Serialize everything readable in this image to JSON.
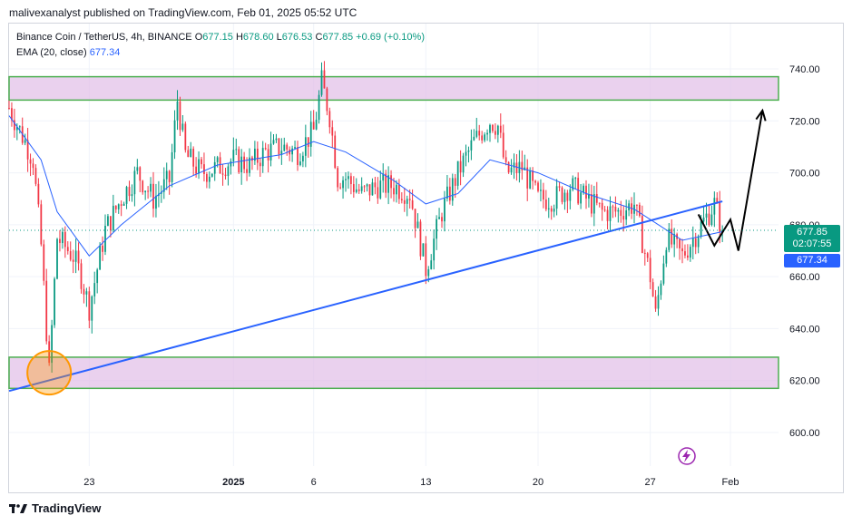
{
  "header": {
    "published_line": "malivexanalyst published on TradingView.com, Feb 01, 2025 05:52 UTC"
  },
  "legend": {
    "symbol": "Binance Coin / TetherUS, 4h, BINANCE",
    "open_label": "O",
    "open": "677.15",
    "high_label": "H",
    "high": "678.60",
    "low_label": "L",
    "low": "676.53",
    "close_label": "C",
    "close": "677.85",
    "change": "+0.69 (+0.10%)",
    "ema_label": "EMA (20, close)",
    "ema_value": "677.34"
  },
  "price_tags": {
    "last_price": "677.85",
    "countdown": "02:07:55",
    "ema": "677.34"
  },
  "footer": {
    "brand": "TradingView"
  },
  "colors": {
    "up": "#089981",
    "down": "#f23645",
    "ema": "#2962ff",
    "zone_fill": "#e1bee7",
    "zone_border": "#4caf50",
    "trendline": "#2962ff",
    "circle": "#ff9800"
  },
  "chart_data": {
    "type": "candlestick",
    "title": "Binance Coin / TetherUS, 4h, BINANCE",
    "y_range": [
      590,
      750
    ],
    "y_ticks": [
      600,
      620,
      640,
      660,
      680,
      700,
      720,
      740
    ],
    "y_tick_labels": [
      "600.00",
      "620.00",
      "640.00",
      "660.00",
      "680.00",
      "700.00",
      "720.00",
      "740.00"
    ],
    "x_ticks": [
      "23",
      "2025",
      "6",
      "13",
      "20",
      "27",
      "Feb"
    ],
    "x_range": [
      "2024-12-18",
      "2025-02-04"
    ],
    "x_tick_dates": [
      "2024-12-23",
      "2025-01-01",
      "2025-01-06",
      "2025-01-13",
      "2025-01-20",
      "2025-01-27",
      "2025-02-01"
    ],
    "close_path": [
      [
        "2024-12-18",
        725
      ],
      [
        "2024-12-19",
        712
      ],
      [
        "2024-12-19 12:00",
        705
      ],
      [
        "2024-12-20",
        672
      ],
      [
        "2024-12-20 12:00",
        623
      ],
      [
        "2024-12-21",
        675
      ],
      [
        "2024-12-22",
        668
      ],
      [
        "2024-12-22 12:00",
        660
      ],
      [
        "2024-12-23",
        648
      ],
      [
        "2024-12-24",
        678
      ],
      [
        "2024-12-25",
        690
      ],
      [
        "2024-12-26",
        700
      ],
      [
        "2024-12-27",
        690
      ],
      [
        "2024-12-28",
        697
      ],
      [
        "2024-12-28 12:00",
        728
      ],
      [
        "2024-12-29",
        707
      ],
      [
        "2024-12-30",
        700
      ],
      [
        "2024-12-31",
        702
      ],
      [
        "2025-01-01",
        705
      ],
      [
        "2025-01-02",
        703
      ],
      [
        "2025-01-03",
        708
      ],
      [
        "2025-01-04",
        710
      ],
      [
        "2025-01-05",
        708
      ],
      [
        "2025-01-06",
        716
      ],
      [
        "2025-01-06 12:00",
        735
      ],
      [
        "2025-01-07",
        722
      ],
      [
        "2025-01-07 12:00",
        698
      ],
      [
        "2025-01-08",
        698
      ],
      [
        "2025-01-09",
        692
      ],
      [
        "2025-01-10",
        695
      ],
      [
        "2025-01-11",
        695
      ],
      [
        "2025-01-12",
        692
      ],
      [
        "2025-01-13",
        663
      ],
      [
        "2025-01-14",
        685
      ],
      [
        "2025-01-15",
        700
      ],
      [
        "2025-01-16",
        712
      ],
      [
        "2025-01-17",
        720
      ],
      [
        "2025-01-17 12:00",
        718
      ],
      [
        "2025-01-18",
        700
      ],
      [
        "2025-01-19",
        702
      ],
      [
        "2025-01-20",
        690
      ],
      [
        "2025-01-21",
        690
      ],
      [
        "2025-01-22",
        695
      ],
      [
        "2025-01-23",
        690
      ],
      [
        "2025-01-24",
        685
      ],
      [
        "2025-01-25",
        685
      ],
      [
        "2025-01-26",
        688
      ],
      [
        "2025-01-27",
        660
      ],
      [
        "2025-01-27 08:00",
        645
      ],
      [
        "2025-01-28",
        675
      ],
      [
        "2025-01-29",
        668
      ],
      [
        "2025-01-30",
        678
      ],
      [
        "2025-01-31",
        688
      ],
      [
        "2025-01-31 12:00",
        677.85
      ]
    ],
    "ema_20_path": [
      [
        "2024-12-18",
        722
      ],
      [
        "2024-12-20",
        705
      ],
      [
        "2024-12-21",
        685
      ],
      [
        "2024-12-23",
        668
      ],
      [
        "2024-12-25",
        680
      ],
      [
        "2024-12-28",
        695
      ],
      [
        "2024-12-31",
        703
      ],
      [
        "2025-01-04",
        707
      ],
      [
        "2025-01-06",
        712
      ],
      [
        "2025-01-08",
        708
      ],
      [
        "2025-01-11",
        697
      ],
      [
        "2025-01-13",
        688
      ],
      [
        "2025-01-15",
        692
      ],
      [
        "2025-01-17",
        705
      ],
      [
        "2025-01-20",
        700
      ],
      [
        "2025-01-23",
        692
      ],
      [
        "2025-01-26",
        686
      ],
      [
        "2025-01-27",
        682
      ],
      [
        "2025-01-29",
        674
      ],
      [
        "2025-01-31 12:00",
        677.34
      ]
    ],
    "resistance_zone": [
      728,
      737
    ],
    "support_zone": [
      617,
      629
    ],
    "support_zone_x": [
      "2024-12-18",
      "2025-02-04"
    ],
    "trendline": [
      [
        "2024-12-18",
        616
      ],
      [
        "2025-01-31 12:00",
        689
      ]
    ],
    "highlight_circle": [
      "2024-12-20 12:00",
      623
    ],
    "projection_path": [
      [
        "2025-01-30",
        684
      ],
      [
        "2025-01-31",
        672
      ],
      [
        "2025-02-01",
        682
      ],
      [
        "2025-02-01 12:00",
        670
      ],
      [
        "2025-02-03",
        724
      ]
    ]
  }
}
